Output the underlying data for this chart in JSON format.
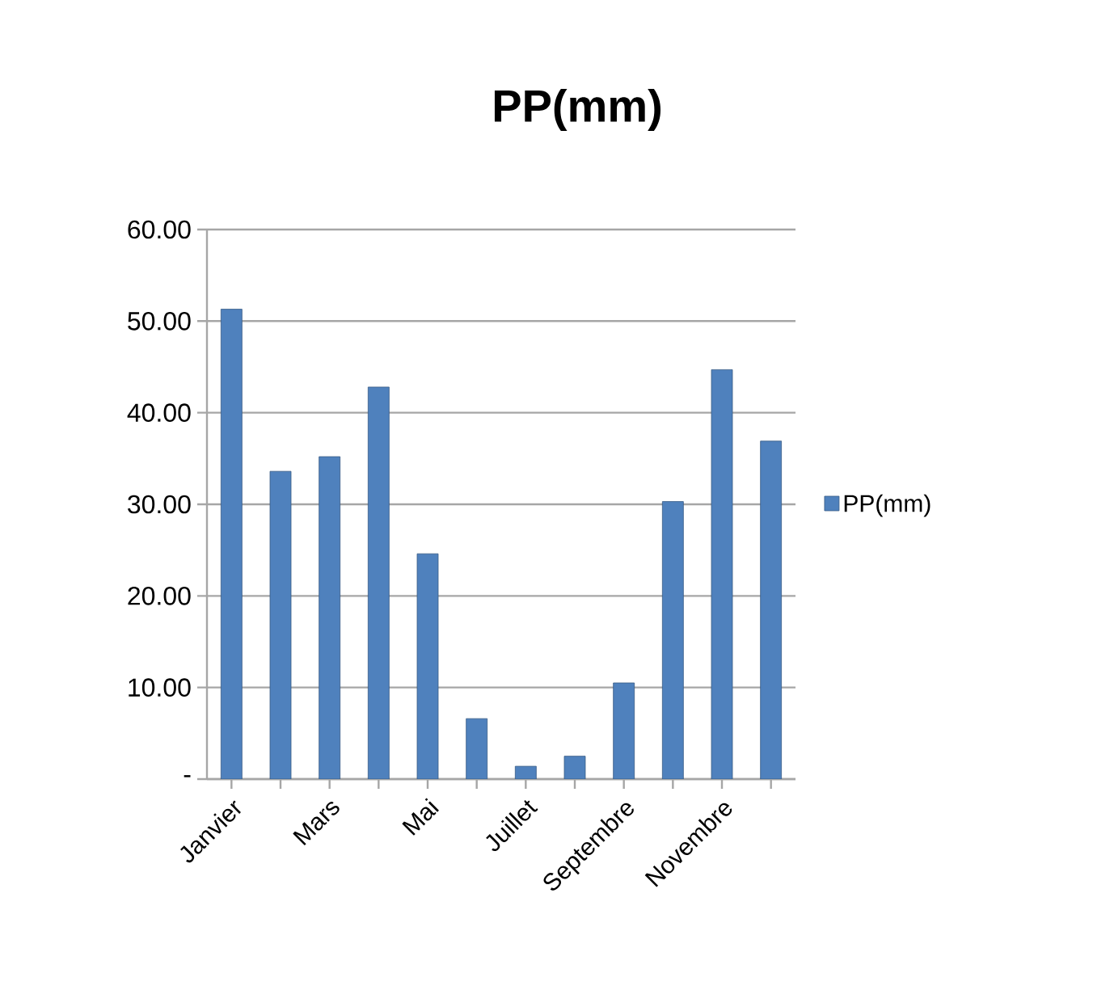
{
  "chart_data": {
    "type": "bar",
    "title": "PP(mm)",
    "categories": [
      "Janvier",
      null,
      "Mars",
      null,
      "Mai",
      null,
      "Juillet",
      null,
      "Septembre",
      null,
      "Novembre",
      null
    ],
    "series": [
      {
        "name": "PP(mm)",
        "color": "#4f81bd",
        "values": [
          51.3,
          33.6,
          35.2,
          42.8,
          24.6,
          6.6,
          1.4,
          2.5,
          10.5,
          30.3,
          44.7,
          36.9
        ]
      }
    ],
    "ylim": [
      0,
      60
    ],
    "yticks": [
      {
        "value": 0,
        "label": "-"
      },
      {
        "value": 10,
        "label": "10.00"
      },
      {
        "value": 20,
        "label": "20.00"
      },
      {
        "value": 30,
        "label": "30.00"
      },
      {
        "value": 40,
        "label": "40.00"
      },
      {
        "value": 50,
        "label": "50.00"
      },
      {
        "value": 60,
        "label": "60.00"
      }
    ],
    "grid": "y",
    "legend": "right"
  }
}
